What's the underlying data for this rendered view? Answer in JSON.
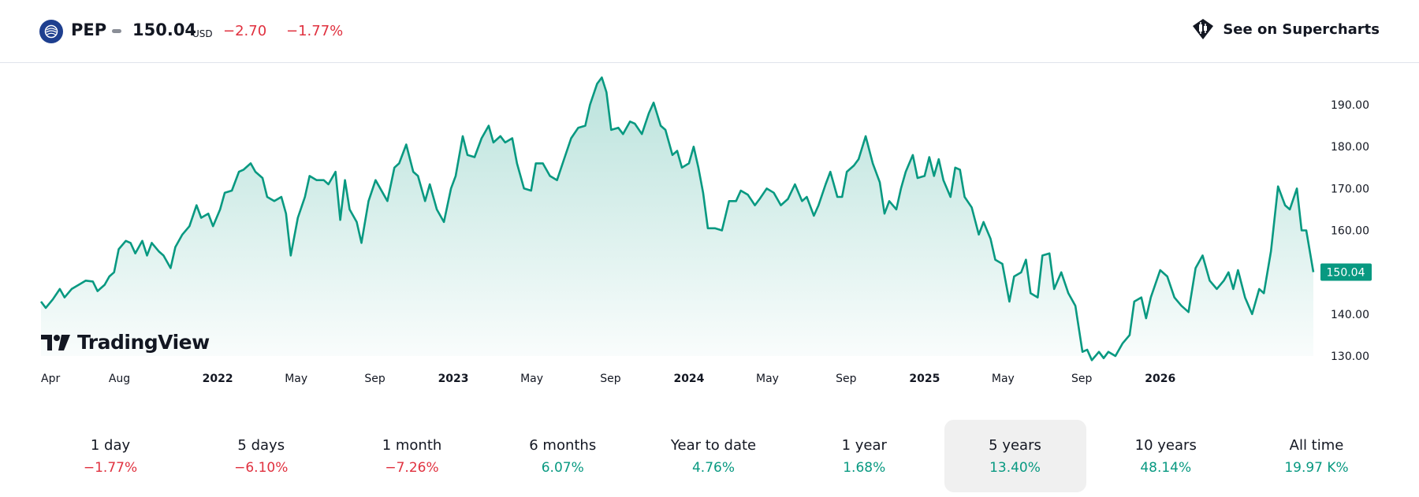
{
  "header": {
    "symbol": "PEP",
    "price": "150.04",
    "currency": "USD",
    "change": "−2.70",
    "change_percent": "−1.77%",
    "supercharts_label": "See on Supercharts"
  },
  "branding": {
    "logo_text": "TradingView"
  },
  "colors": {
    "line": "#089981",
    "negative": "#e0313f",
    "positive": "#089981",
    "last_price_badge": "#089981"
  },
  "periods": [
    {
      "label": "1 day",
      "value": "−1.77%",
      "trend": "negative"
    },
    {
      "label": "5 days",
      "value": "−6.10%",
      "trend": "negative"
    },
    {
      "label": "1 month",
      "value": "−7.26%",
      "trend": "negative"
    },
    {
      "label": "6 months",
      "value": "6.07%",
      "trend": "positive"
    },
    {
      "label": "Year to date",
      "value": "4.76%",
      "trend": "positive"
    },
    {
      "label": "1 year",
      "value": "1.68%",
      "trend": "positive"
    },
    {
      "label": "5 years",
      "value": "13.40%",
      "trend": "positive",
      "selected": true
    },
    {
      "label": "10 years",
      "value": "48.14%",
      "trend": "positive"
    },
    {
      "label": "All time",
      "value": "19.97 K%",
      "trend": "positive"
    }
  ],
  "chart_data": {
    "type": "area",
    "ylim": [
      128,
      197
    ],
    "y_ticks": [
      "190.00",
      "180.00",
      "170.00",
      "160.00",
      "150.00",
      "140.00",
      "130.00"
    ],
    "x_ticks": [
      {
        "label": "Apr",
        "bold": false,
        "t": 2021.25
      },
      {
        "label": "Aug",
        "bold": false,
        "t": 2021.583
      },
      {
        "label": "2022",
        "bold": true,
        "t": 2022.0
      },
      {
        "label": "May",
        "bold": false,
        "t": 2022.333
      },
      {
        "label": "Sep",
        "bold": false,
        "t": 2022.667
      },
      {
        "label": "2023",
        "bold": true,
        "t": 2023.0
      },
      {
        "label": "May",
        "bold": false,
        "t": 2023.333
      },
      {
        "label": "Sep",
        "bold": false,
        "t": 2023.667
      },
      {
        "label": "2024",
        "bold": true,
        "t": 2024.0
      },
      {
        "label": "May",
        "bold": false,
        "t": 2024.333
      },
      {
        "label": "Sep",
        "bold": false,
        "t": 2024.667
      },
      {
        "label": "2025",
        "bold": true,
        "t": 2025.0
      },
      {
        "label": "May",
        "bold": false,
        "t": 2025.333
      },
      {
        "label": "Sep",
        "bold": false,
        "t": 2025.667
      },
      {
        "label": "2026",
        "bold": true,
        "t": 2026.0
      }
    ],
    "last_price": "150.04",
    "series": [
      {
        "values": [
          [
            2021.25,
            143
          ],
          [
            2021.27,
            141.5
          ],
          [
            2021.3,
            143.5
          ],
          [
            2021.33,
            146
          ],
          [
            2021.35,
            144
          ],
          [
            2021.38,
            146
          ],
          [
            2021.41,
            147
          ],
          [
            2021.44,
            148
          ],
          [
            2021.47,
            147.8
          ],
          [
            2021.49,
            145.5
          ],
          [
            2021.52,
            147
          ],
          [
            2021.54,
            149
          ],
          [
            2021.56,
            150
          ],
          [
            2021.58,
            155.5
          ],
          [
            2021.61,
            157.5
          ],
          [
            2021.63,
            157
          ],
          [
            2021.65,
            154.5
          ],
          [
            2021.68,
            157.5
          ],
          [
            2021.7,
            154
          ],
          [
            2021.72,
            157
          ],
          [
            2021.75,
            155
          ],
          [
            2021.77,
            154
          ],
          [
            2021.8,
            151
          ],
          [
            2021.82,
            156
          ],
          [
            2021.85,
            159
          ],
          [
            2021.88,
            161
          ],
          [
            2021.91,
            166
          ],
          [
            2021.93,
            163
          ],
          [
            2021.96,
            164
          ],
          [
            2021.98,
            161
          ],
          [
            2022.01,
            165
          ],
          [
            2022.03,
            169
          ],
          [
            2022.06,
            169.5
          ],
          [
            2022.09,
            174
          ],
          [
            2022.11,
            174.5
          ],
          [
            2022.14,
            176
          ],
          [
            2022.16,
            174
          ],
          [
            2022.19,
            172.5
          ],
          [
            2022.21,
            168
          ],
          [
            2022.24,
            167
          ],
          [
            2022.27,
            168
          ],
          [
            2022.29,
            164
          ],
          [
            2022.31,
            154
          ],
          [
            2022.34,
            163
          ],
          [
            2022.37,
            168
          ],
          [
            2022.39,
            173
          ],
          [
            2022.42,
            172
          ],
          [
            2022.45,
            172
          ],
          [
            2022.47,
            171
          ],
          [
            2022.5,
            174
          ],
          [
            2022.52,
            162.5
          ],
          [
            2022.54,
            172
          ],
          [
            2022.56,
            165
          ],
          [
            2022.59,
            162
          ],
          [
            2022.61,
            157
          ],
          [
            2022.64,
            167
          ],
          [
            2022.67,
            172
          ],
          [
            2022.69,
            170
          ],
          [
            2022.72,
            167
          ],
          [
            2022.75,
            175
          ],
          [
            2022.77,
            176
          ],
          [
            2022.8,
            180.5
          ],
          [
            2022.83,
            174
          ],
          [
            2022.85,
            173
          ],
          [
            2022.88,
            167
          ],
          [
            2022.9,
            171
          ],
          [
            2022.93,
            165
          ],
          [
            2022.96,
            162
          ],
          [
            2022.99,
            170
          ],
          [
            2023.01,
            173
          ],
          [
            2023.04,
            182.5
          ],
          [
            2023.06,
            178
          ],
          [
            2023.09,
            177.5
          ],
          [
            2023.12,
            182
          ],
          [
            2023.15,
            185
          ],
          [
            2023.17,
            181
          ],
          [
            2023.2,
            182.5
          ],
          [
            2023.22,
            181
          ],
          [
            2023.25,
            182
          ],
          [
            2023.27,
            176
          ],
          [
            2023.3,
            170
          ],
          [
            2023.33,
            169.5
          ],
          [
            2023.35,
            176
          ],
          [
            2023.38,
            176
          ],
          [
            2023.41,
            173
          ],
          [
            2023.44,
            172
          ],
          [
            2023.47,
            177
          ],
          [
            2023.5,
            182
          ],
          [
            2023.53,
            184.5
          ],
          [
            2023.56,
            185
          ],
          [
            2023.58,
            190
          ],
          [
            2023.61,
            195
          ],
          [
            2023.63,
            196.5
          ],
          [
            2023.65,
            193
          ],
          [
            2023.67,
            184
          ],
          [
            2023.7,
            184.5
          ],
          [
            2023.72,
            183
          ],
          [
            2023.75,
            186
          ],
          [
            2023.77,
            185.5
          ],
          [
            2023.8,
            183
          ],
          [
            2023.83,
            188
          ],
          [
            2023.85,
            190.5
          ],
          [
            2023.88,
            185
          ],
          [
            2023.9,
            184
          ],
          [
            2023.93,
            178
          ],
          [
            2023.95,
            179
          ],
          [
            2023.97,
            175
          ],
          [
            2024.0,
            176
          ],
          [
            2024.02,
            180
          ],
          [
            2024.04,
            175
          ],
          [
            2024.06,
            169
          ],
          [
            2024.08,
            160.5
          ],
          [
            2024.11,
            160.5
          ],
          [
            2024.14,
            160
          ],
          [
            2024.17,
            167
          ],
          [
            2024.2,
            167
          ],
          [
            2024.22,
            169.5
          ],
          [
            2024.25,
            168.5
          ],
          [
            2024.28,
            166
          ],
          [
            2024.3,
            167.5
          ],
          [
            2024.33,
            170
          ],
          [
            2024.36,
            169
          ],
          [
            2024.39,
            166
          ],
          [
            2024.42,
            167.5
          ],
          [
            2024.45,
            171
          ],
          [
            2024.48,
            167
          ],
          [
            2024.5,
            168
          ],
          [
            2024.53,
            163.5
          ],
          [
            2024.55,
            166
          ],
          [
            2024.58,
            171
          ],
          [
            2024.6,
            174
          ],
          [
            2024.63,
            168
          ],
          [
            2024.65,
            168
          ],
          [
            2024.67,
            174
          ],
          [
            2024.7,
            175.5
          ],
          [
            2024.72,
            177
          ],
          [
            2024.75,
            182.5
          ],
          [
            2024.78,
            176
          ],
          [
            2024.81,
            171.5
          ],
          [
            2024.83,
            164
          ],
          [
            2024.85,
            167
          ],
          [
            2024.88,
            165
          ],
          [
            2024.9,
            170
          ],
          [
            2024.92,
            174
          ],
          [
            2024.95,
            178
          ],
          [
            2024.97,
            172.5
          ],
          [
            2025.0,
            173
          ],
          [
            2025.02,
            177.5
          ],
          [
            2025.04,
            173
          ],
          [
            2025.06,
            177
          ],
          [
            2025.08,
            172
          ],
          [
            2025.11,
            168
          ],
          [
            2025.13,
            175
          ],
          [
            2025.15,
            174.5
          ],
          [
            2025.17,
            168
          ],
          [
            2025.2,
            165.5
          ],
          [
            2025.23,
            159
          ],
          [
            2025.25,
            162
          ],
          [
            2025.28,
            158
          ],
          [
            2025.3,
            153
          ],
          [
            2025.33,
            152
          ],
          [
            2025.36,
            143
          ],
          [
            2025.38,
            149
          ],
          [
            2025.41,
            150
          ],
          [
            2025.43,
            153
          ],
          [
            2025.45,
            145
          ],
          [
            2025.48,
            144
          ],
          [
            2025.5,
            154
          ],
          [
            2025.53,
            154.5
          ],
          [
            2025.55,
            146
          ],
          [
            2025.58,
            150
          ],
          [
            2025.61,
            145
          ],
          [
            2025.64,
            142
          ],
          [
            2025.67,
            131
          ],
          [
            2025.69,
            131.5
          ],
          [
            2025.71,
            129
          ],
          [
            2025.74,
            131
          ],
          [
            2025.76,
            129.5
          ],
          [
            2025.78,
            131
          ],
          [
            2025.81,
            130
          ],
          [
            2025.84,
            133
          ],
          [
            2025.87,
            135
          ],
          [
            2025.89,
            143
          ],
          [
            2025.92,
            144
          ],
          [
            2025.94,
            139
          ],
          [
            2025.96,
            144
          ],
          [
            2026.0,
            150.5
          ],
          [
            2026.03,
            149
          ],
          [
            2026.06,
            144
          ],
          [
            2026.09,
            142
          ],
          [
            2026.12,
            140.5
          ],
          [
            2026.15,
            151
          ],
          [
            2026.18,
            154
          ],
          [
            2026.21,
            148
          ],
          [
            2026.24,
            146
          ],
          [
            2026.27,
            148
          ],
          [
            2026.29,
            150
          ],
          [
            2026.31,
            146
          ],
          [
            2026.33,
            150.5
          ],
          [
            2026.36,
            144
          ],
          [
            2026.39,
            140
          ],
          [
            2026.42,
            146
          ],
          [
            2026.44,
            145
          ],
          [
            2026.47,
            155
          ],
          [
            2026.5,
            170.5
          ],
          [
            2026.53,
            166
          ],
          [
            2026.55,
            165
          ],
          [
            2026.58,
            170
          ],
          [
            2026.6,
            160
          ],
          [
            2026.62,
            160
          ],
          [
            2026.65,
            150.04
          ]
        ]
      }
    ]
  }
}
